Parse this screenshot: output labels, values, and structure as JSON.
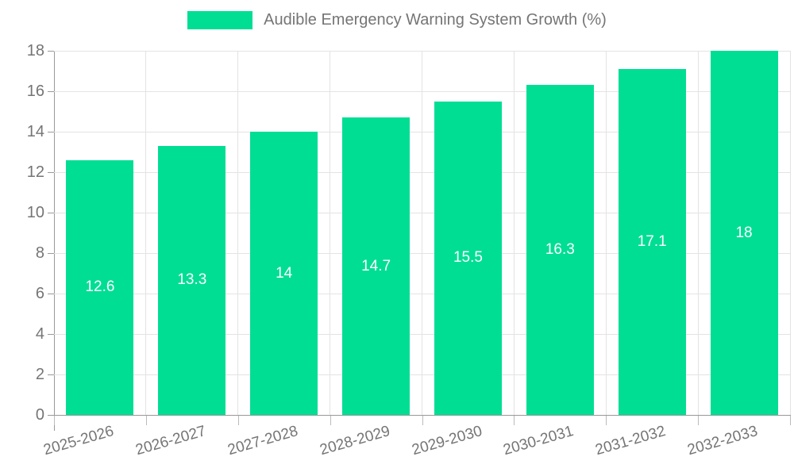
{
  "legend": {
    "label": "Audible Emergency Warning System Growth (%)",
    "swatch_color": "#00DE94"
  },
  "chart_data": {
    "type": "bar",
    "title": "Audible Emergency Warning System Growth (%)",
    "categories": [
      "2025-2026",
      "2026-2027",
      "2027-2028",
      "2028-2029",
      "2029-2030",
      "2030-2031",
      "2031-2032",
      "2032-2033"
    ],
    "values": [
      12.6,
      13.3,
      14,
      14.7,
      15.5,
      16.3,
      17.1,
      18
    ],
    "value_labels": [
      "12.6",
      "13.3",
      "14",
      "14.7",
      "15.5",
      "16.3",
      "17.1",
      "18"
    ],
    "xlabel": "",
    "ylabel": "",
    "ylim": [
      0,
      18
    ],
    "yticks": [
      0,
      2,
      4,
      6,
      8,
      10,
      12,
      14,
      16,
      18
    ],
    "bar_color": "#00DE94",
    "grid": true,
    "gridline_color": "#e3e3e3",
    "axis_color": "#999999",
    "text_color": "#757575",
    "value_label_color": "#ffffff",
    "legend_position": "top"
  }
}
